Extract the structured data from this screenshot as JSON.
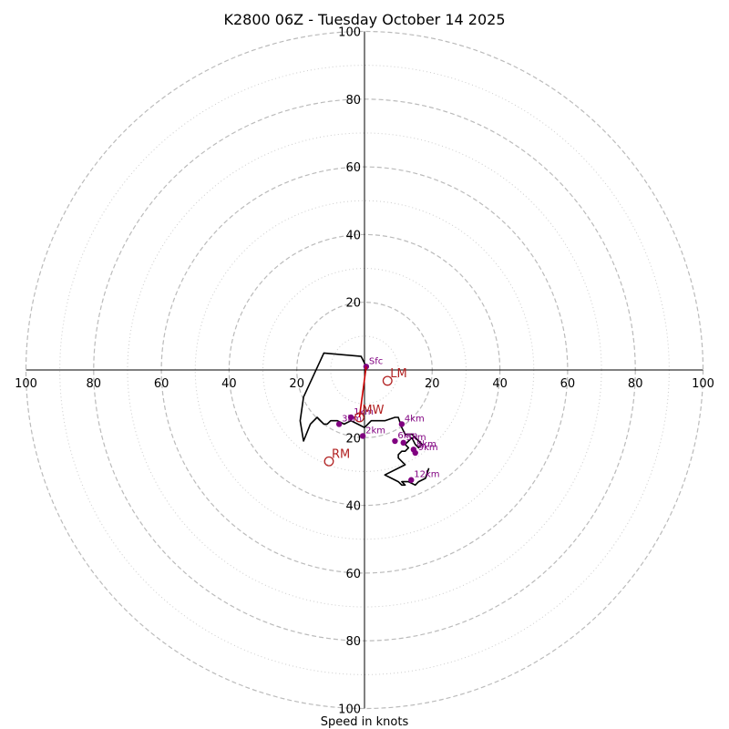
{
  "chart_data": {
    "type": "hodograph",
    "title": "K2800 06Z - Tuesday October 14 2025",
    "xlabel": "Speed in knots",
    "unit": "knots",
    "range": [
      -100,
      100
    ],
    "ring_major": [
      20,
      40,
      60,
      80,
      100
    ],
    "ring_minor": [
      10,
      30,
      50,
      70,
      90
    ],
    "x_ticks": [
      "100",
      "80",
      "60",
      "40",
      "20",
      "20",
      "40",
      "60",
      "80",
      "100"
    ],
    "x_tick_values": [
      -100,
      -80,
      -60,
      -40,
      -20,
      20,
      40,
      60,
      80,
      100
    ],
    "y_ticks": [
      "100",
      "80",
      "60",
      "40",
      "20",
      "20",
      "40",
      "60",
      "80",
      "100"
    ],
    "y_tick_values": [
      100,
      80,
      60,
      40,
      20,
      -20,
      -40,
      -60,
      -80,
      -100
    ],
    "trace": {
      "name": "hodograph trace",
      "color": "#000000",
      "u": [
        0.5,
        -1,
        -12,
        -18,
        -19,
        -18,
        -16,
        -14,
        -12,
        -11,
        -10,
        -8,
        -6,
        -4,
        -2,
        0,
        2,
        6,
        9,
        10,
        11,
        12,
        14,
        15,
        16,
        17,
        16,
        15,
        14,
        13,
        12,
        13,
        12,
        11,
        10,
        10,
        11,
        12,
        12,
        6,
        8,
        10,
        11,
        12,
        11,
        13,
        15,
        16,
        18,
        19
      ],
      "v": [
        1,
        4,
        5,
        -8,
        -15,
        -21,
        -16,
        -14,
        -16,
        -16,
        -15,
        -15,
        -16,
        -15,
        -16,
        -17,
        -15,
        -15,
        -14,
        -14,
        -17,
        -19,
        -19,
        -20,
        -21,
        -22,
        -23,
        -22,
        -20,
        -21,
        -22,
        -23,
        -24,
        -24,
        -25,
        -26,
        -27,
        -28,
        -28,
        -31,
        -32,
        -33,
        -34,
        -34,
        -33,
        -33,
        -34,
        -33,
        -32,
        -29
      ]
    },
    "heights": [
      {
        "label": "Sfc",
        "u": 0.5,
        "v": 1
      },
      {
        "label": "1km",
        "u": -4,
        "v": -14
      },
      {
        "label": "2km",
        "u": -0.5,
        "v": -19.5
      },
      {
        "label": "3km",
        "u": -7.5,
        "v": -16
      },
      {
        "label": "4km",
        "u": 11,
        "v": -16
      },
      {
        "label": "5km",
        "u": 11.5,
        "v": -21.5
      },
      {
        "label": "6km",
        "u": 9,
        "v": -21
      },
      {
        "label": "8km",
        "u": 14.5,
        "v": -23.5
      },
      {
        "label": "9km",
        "u": 15,
        "v": -24.5
      },
      {
        "label": "12km",
        "u": 13.8,
        "v": -32.5
      }
    ],
    "storm_motion": [
      {
        "label": "MW",
        "u": -1.5,
        "v": -14
      },
      {
        "label": "LM",
        "u": 6.8,
        "v": -3.2
      },
      {
        "label": "RM",
        "u": -10.5,
        "v": -27
      }
    ],
    "mean_wind_line": {
      "from_u": 0.5,
      "from_v": 1,
      "to_u": -1.5,
      "to_v": -14,
      "color": "#cc0000"
    },
    "colors": {
      "grid_major": "#bbbbbb",
      "grid_minor": "#cccccc",
      "marker": "#800080",
      "storm": "#b22222"
    }
  }
}
